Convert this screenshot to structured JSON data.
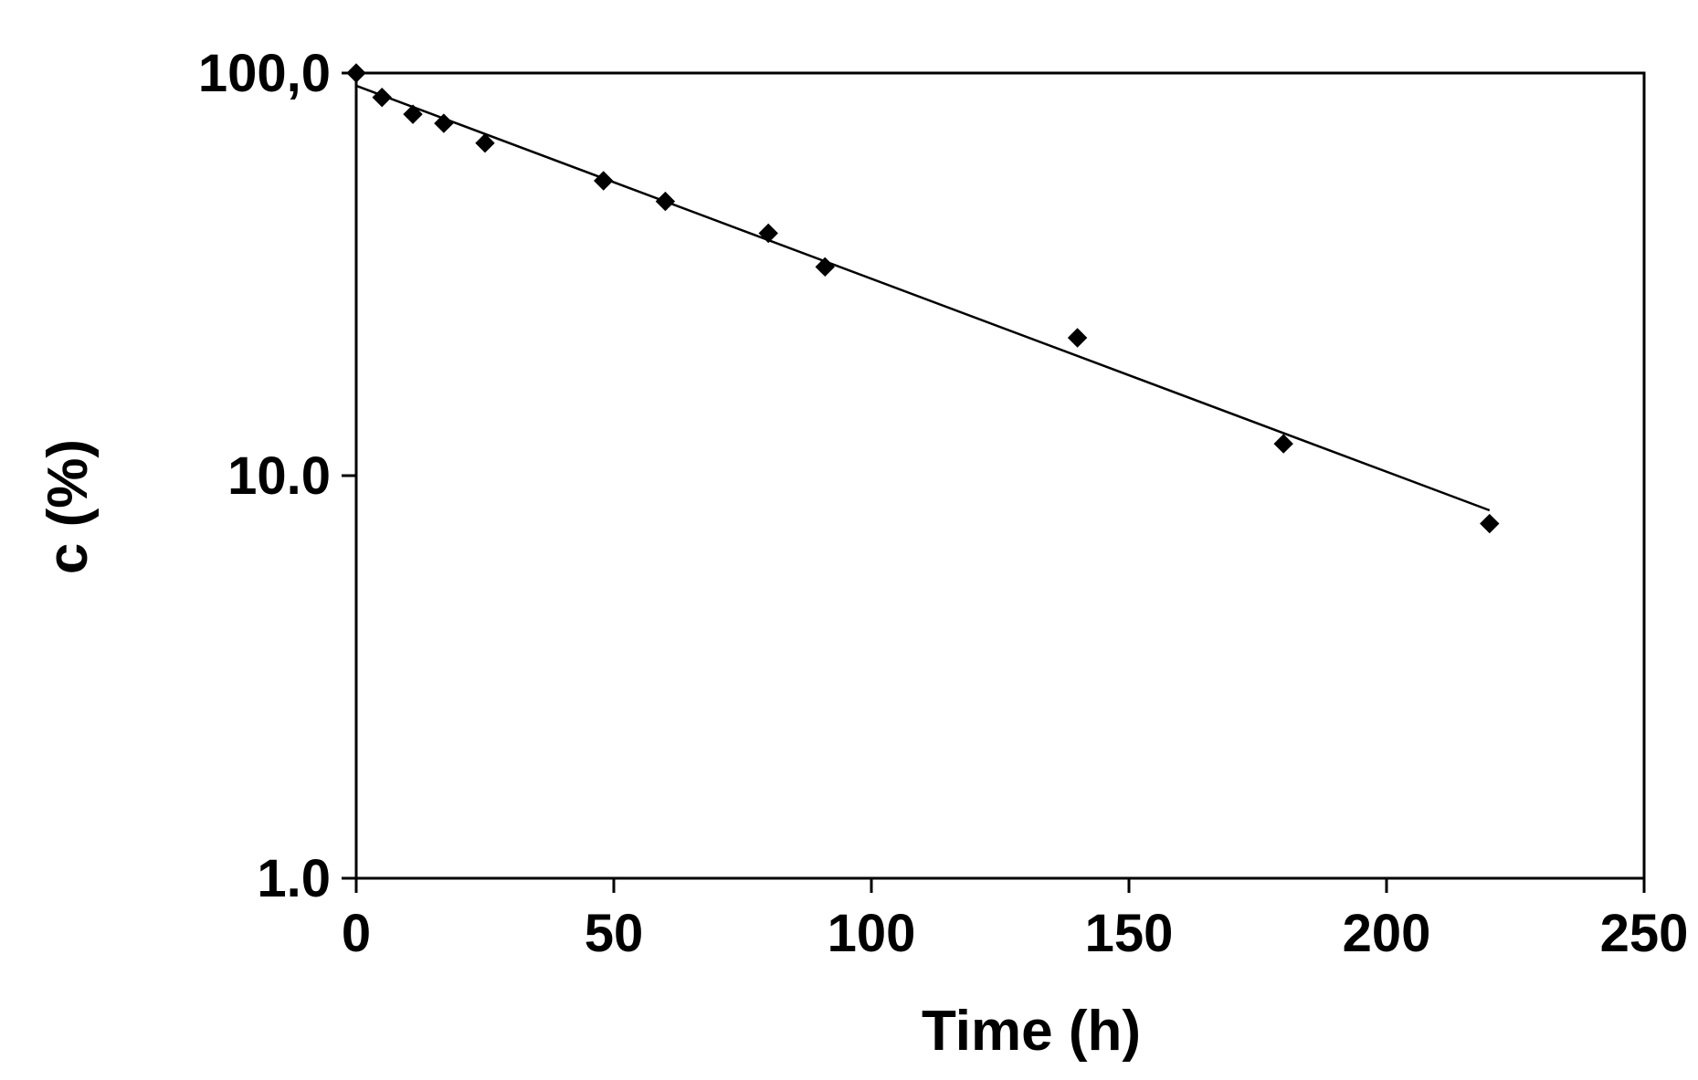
{
  "chart_data": {
    "type": "scatter",
    "xlabel": "Time (h)",
    "ylabel": "c (%)",
    "xlim": [
      0,
      250
    ],
    "ylim": [
      1,
      100
    ],
    "y_scale": "log",
    "grid": false,
    "x_ticks": [
      {
        "value": 0,
        "label": "0"
      },
      {
        "value": 50,
        "label": "50"
      },
      {
        "value": 100,
        "label": "100"
      },
      {
        "value": 150,
        "label": "150"
      },
      {
        "value": 200,
        "label": "200"
      },
      {
        "value": 250,
        "label": "250"
      }
    ],
    "y_ticks": [
      {
        "value": 1,
        "label": "1.0"
      },
      {
        "value": 10,
        "label": "10.0"
      },
      {
        "value": 100,
        "label": "100,0"
      }
    ],
    "series": [
      {
        "marker": "diamond",
        "color": "#000000",
        "x": [
          0,
          5,
          11,
          17,
          25,
          48,
          60,
          80,
          91,
          140,
          180,
          220
        ],
        "y": [
          100,
          87,
          79,
          75,
          67,
          54,
          48,
          40,
          33,
          22,
          12,
          7.6
        ]
      }
    ],
    "trendline": {
      "type": "exponential",
      "color": "#000000",
      "x": [
        0,
        220
      ],
      "y": [
        93,
        8.2
      ]
    }
  }
}
